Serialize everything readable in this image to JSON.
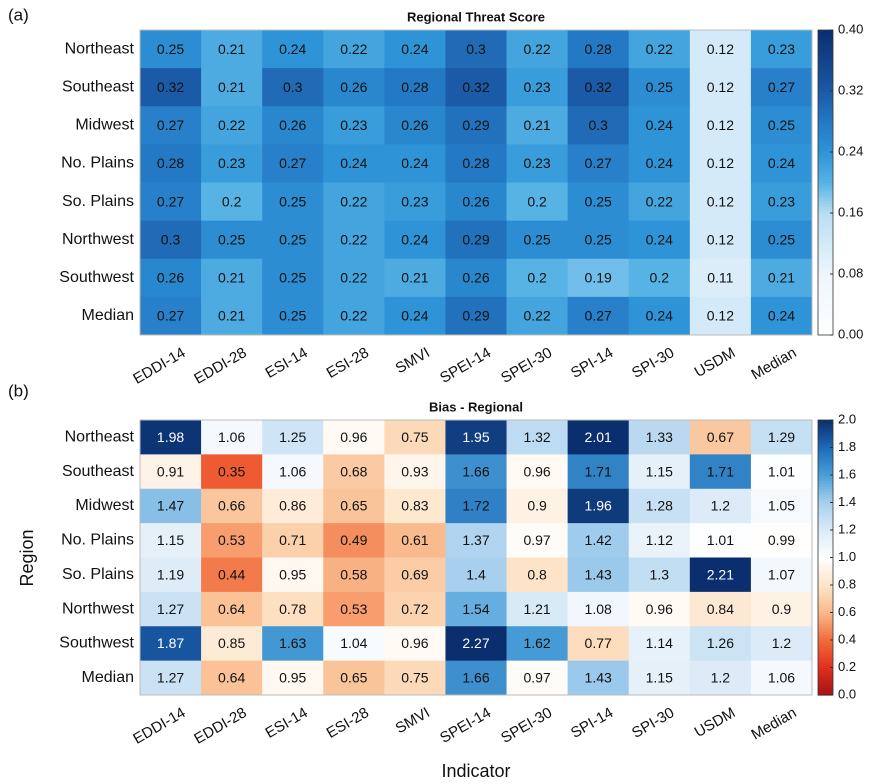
{
  "chart_data": [
    {
      "type": "heatmap",
      "panel_label": "(a)",
      "title": "Regional Threat Score",
      "colormap": "blues",
      "categories": [
        "EDDI-14",
        "EDDI-28",
        "ESI-14",
        "ESI-28",
        "SMVI",
        "SPEI-14",
        "SPEI-30",
        "SPI-14",
        "SPI-30",
        "USDM",
        "Median"
      ],
      "rows": [
        "Northeast",
        "Southeast",
        "Midwest",
        "No. Plains",
        "So. Plains",
        "Northwest",
        "Southwest",
        "Median"
      ],
      "values": [
        [
          0.25,
          0.21,
          0.24,
          0.22,
          0.24,
          0.3,
          0.22,
          0.28,
          0.22,
          0.12,
          0.23
        ],
        [
          0.32,
          0.21,
          0.3,
          0.26,
          0.28,
          0.32,
          0.23,
          0.32,
          0.25,
          0.12,
          0.27
        ],
        [
          0.27,
          0.22,
          0.26,
          0.23,
          0.26,
          0.29,
          0.21,
          0.3,
          0.24,
          0.12,
          0.25
        ],
        [
          0.28,
          0.23,
          0.27,
          0.24,
          0.24,
          0.28,
          0.23,
          0.27,
          0.24,
          0.12,
          0.24
        ],
        [
          0.27,
          0.2,
          0.25,
          0.22,
          0.23,
          0.26,
          0.2,
          0.25,
          0.22,
          0.12,
          0.23
        ],
        [
          0.3,
          0.25,
          0.25,
          0.22,
          0.24,
          0.29,
          0.25,
          0.25,
          0.24,
          0.12,
          0.25
        ],
        [
          0.26,
          0.21,
          0.25,
          0.22,
          0.21,
          0.26,
          0.2,
          0.19,
          0.2,
          0.11,
          0.21
        ],
        [
          0.27,
          0.21,
          0.25,
          0.22,
          0.24,
          0.29,
          0.22,
          0.27,
          0.24,
          0.12,
          0.24
        ]
      ],
      "clim": [
        0,
        0.4
      ],
      "cticks": [
        {
          "value": 0,
          "label": "0.00"
        },
        0.08,
        0.16,
        0.24,
        0.32,
        {
          "value": 0.4,
          "label": "0.40"
        }
      ]
    },
    {
      "type": "heatmap",
      "panel_label": "(b)",
      "title": "Bias - Regional",
      "colormap": "diverging",
      "xlabel": "Indicator",
      "ylabel": "Region",
      "categories": [
        "EDDI-14",
        "EDDI-28",
        "ESI-14",
        "ESI-28",
        "SMVI",
        "SPEI-14",
        "SPEI-30",
        "SPI-14",
        "SPI-30",
        "USDM",
        "Median"
      ],
      "rows": [
        "Northeast",
        "Southeast",
        "Midwest",
        "No. Plains",
        "So. Plains",
        "Northwest",
        "Southwest",
        "Median"
      ],
      "values": [
        [
          1.98,
          1.06,
          1.25,
          0.96,
          0.75,
          1.95,
          1.32,
          2.01,
          1.33,
          0.67,
          1.29
        ],
        [
          0.91,
          0.35,
          1.06,
          0.68,
          0.93,
          1.66,
          0.96,
          1.71,
          1.15,
          1.71,
          1.01
        ],
        [
          1.47,
          0.66,
          0.86,
          0.65,
          0.83,
          1.72,
          0.9,
          1.96,
          1.28,
          1.2,
          1.05
        ],
        [
          1.15,
          0.53,
          0.71,
          0.49,
          0.61,
          1.37,
          0.97,
          1.42,
          1.12,
          1.01,
          0.99
        ],
        [
          1.19,
          0.44,
          0.95,
          0.58,
          0.69,
          1.4,
          0.8,
          1.43,
          1.3,
          2.21,
          1.07
        ],
        [
          1.27,
          0.64,
          0.78,
          0.53,
          0.72,
          1.54,
          1.21,
          1.08,
          0.96,
          0.84,
          0.9
        ],
        [
          1.87,
          0.85,
          1.63,
          1.04,
          0.96,
          2.27,
          1.62,
          0.77,
          1.14,
          1.26,
          1.2
        ],
        [
          1.27,
          0.64,
          0.95,
          0.65,
          0.75,
          1.66,
          0.97,
          1.43,
          1.15,
          1.2,
          1.06
        ]
      ],
      "clim": [
        0,
        2
      ],
      "cticks": [
        {
          "value": 0,
          "label": "0.0"
        },
        0.2,
        0.4,
        0.6,
        0.8,
        {
          "value": 1,
          "label": "1.0"
        },
        1.2,
        1.4,
        1.6,
        1.8,
        {
          "value": 2,
          "label": "2.0"
        }
      ]
    }
  ]
}
